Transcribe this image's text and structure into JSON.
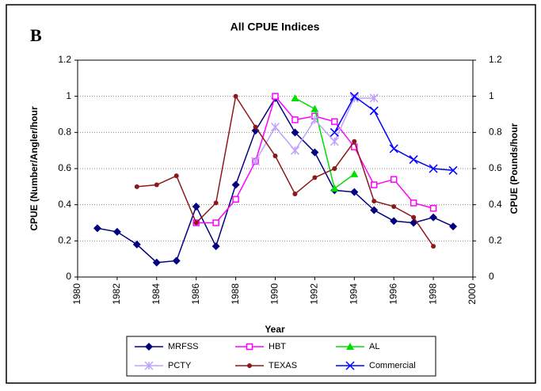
{
  "chart_data": {
    "type": "line",
    "panel_label": "B",
    "title": "All CPUE Indices",
    "x_label": "Year",
    "y_label": "CPUE (Number/Angler/hour",
    "y2_label": "CPUE (Pounds/hour",
    "xlim": [
      1980,
      2000
    ],
    "xticks": [
      1980,
      1982,
      1984,
      1986,
      1988,
      1990,
      1992,
      1994,
      1996,
      1998,
      2000
    ],
    "ylim": [
      0,
      1.2
    ],
    "yticks": [
      0,
      0.2,
      0.4,
      0.6,
      0.8,
      1,
      1.2
    ],
    "y2lim": [
      0,
      1.2
    ],
    "y2ticks": [
      0,
      0.2,
      0.4,
      0.6,
      0.8,
      1,
      1.2
    ],
    "grid": true,
    "series": [
      {
        "name": "MRFSS",
        "color": "#000080",
        "marker": "diamond",
        "x": [
          1981,
          1982,
          1983,
          1984,
          1985,
          1986,
          1987,
          1988,
          1989,
          1990,
          1991,
          1992,
          1993,
          1994,
          1995,
          1996,
          1997,
          1998,
          1999
        ],
        "values": [
          0.27,
          0.25,
          0.18,
          0.08,
          0.09,
          0.39,
          0.17,
          0.51,
          0.81,
          0.99,
          0.8,
          0.69,
          0.48,
          0.47,
          0.37,
          0.31,
          0.3,
          0.33,
          0.28
        ]
      },
      {
        "name": "HBT",
        "color": "#ff00ff",
        "marker": "square",
        "x": [
          1986,
          1987,
          1988,
          1989,
          1990,
          1991,
          1992,
          1993,
          1994,
          1995,
          1996,
          1997,
          1998
        ],
        "values": [
          0.3,
          0.3,
          0.43,
          0.64,
          1.0,
          0.87,
          0.89,
          0.86,
          0.72,
          0.51,
          0.54,
          0.41,
          0.38
        ]
      },
      {
        "name": "AL",
        "color": "#00dd00",
        "marker": "triangle",
        "x": [
          1991,
          1992,
          1993,
          1994
        ],
        "values": [
          0.99,
          0.93,
          0.49,
          0.57
        ]
      },
      {
        "name": "PCTY",
        "color": "#c0a0ff",
        "marker": "asterisk",
        "x": [
          1989,
          1990,
          1991,
          1992,
          1993,
          1994,
          1995
        ],
        "values": [
          0.64,
          0.83,
          0.7,
          0.87,
          0.75,
          0.99,
          0.99
        ]
      },
      {
        "name": "TEXAS",
        "color": "#8b1a1a",
        "marker": "circle",
        "x": [
          1983,
          1984,
          1985,
          1986,
          1987,
          1988,
          1989,
          1990,
          1991,
          1992,
          1993,
          1994,
          1995,
          1996,
          1997,
          1998
        ],
        "values": [
          0.5,
          0.51,
          0.56,
          0.3,
          0.41,
          1.0,
          0.83,
          0.67,
          0.46,
          0.55,
          0.6,
          0.75,
          0.42,
          0.39,
          0.33,
          0.17
        ]
      },
      {
        "name": "Commercial",
        "color": "#0000ff",
        "marker": "cross",
        "axis": "y2",
        "x": [
          1993,
          1994,
          1995,
          1996,
          1997,
          1998,
          1999
        ],
        "values": [
          0.8,
          1.0,
          0.92,
          0.71,
          0.65,
          0.6,
          0.59
        ]
      }
    ]
  }
}
